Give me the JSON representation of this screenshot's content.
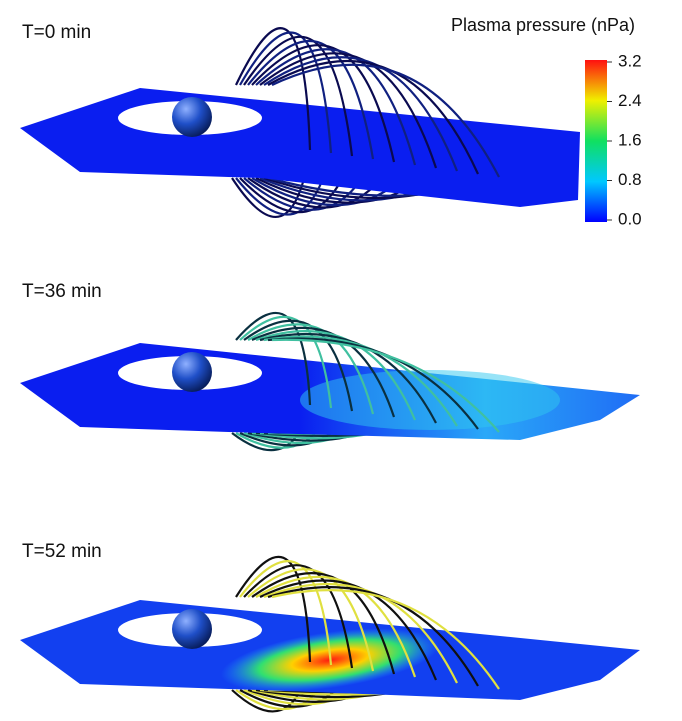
{
  "colorbar": {
    "title": "Plasma pressure (nPa)",
    "range": [
      0,
      3.2
    ],
    "ticks": [
      3.2,
      2.4,
      1.6,
      0.8,
      {
        "value": 0,
        "label": "0.0"
      }
    ]
  },
  "panels": [
    {
      "label": "T=0 min"
    },
    {
      "label": "T=36 min"
    },
    {
      "label": "T=52 min"
    }
  ]
}
